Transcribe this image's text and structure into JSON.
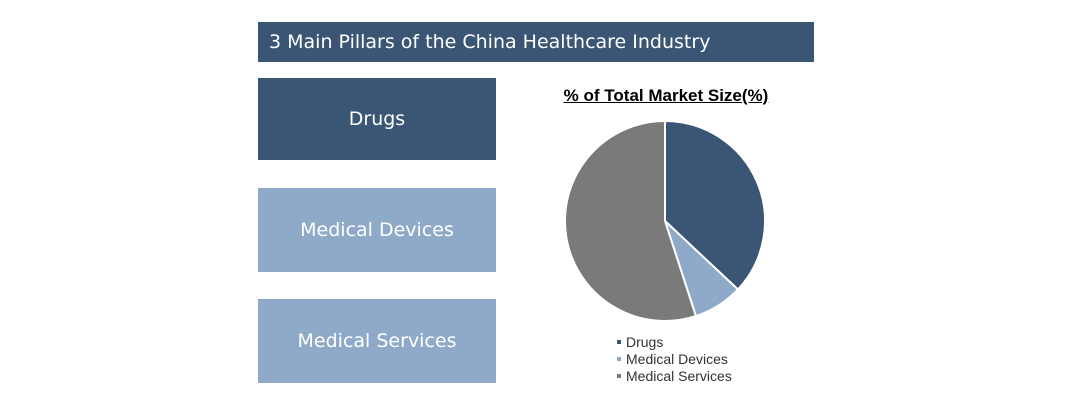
{
  "title": "3 Main Pillars of the China Healthcare Industry",
  "pillars": [
    {
      "label": "Drugs",
      "color": "#3a5674"
    },
    {
      "label": "Medical Devices",
      "color": "#8eaac8"
    },
    {
      "label": "Medical Services",
      "color": "#8eaac8"
    }
  ],
  "chart_data": {
    "type": "pie",
    "title": "% of Total Market Size(%)",
    "categories": [
      "Drugs",
      "Medical Devices",
      "Medical Services"
    ],
    "values": [
      37,
      8,
      55
    ],
    "colors": [
      "#3a5674",
      "#8eaac8",
      "#7a7a7a"
    ],
    "legend_position": "bottom",
    "start_angle_deg": 0,
    "direction": "clockwise"
  }
}
